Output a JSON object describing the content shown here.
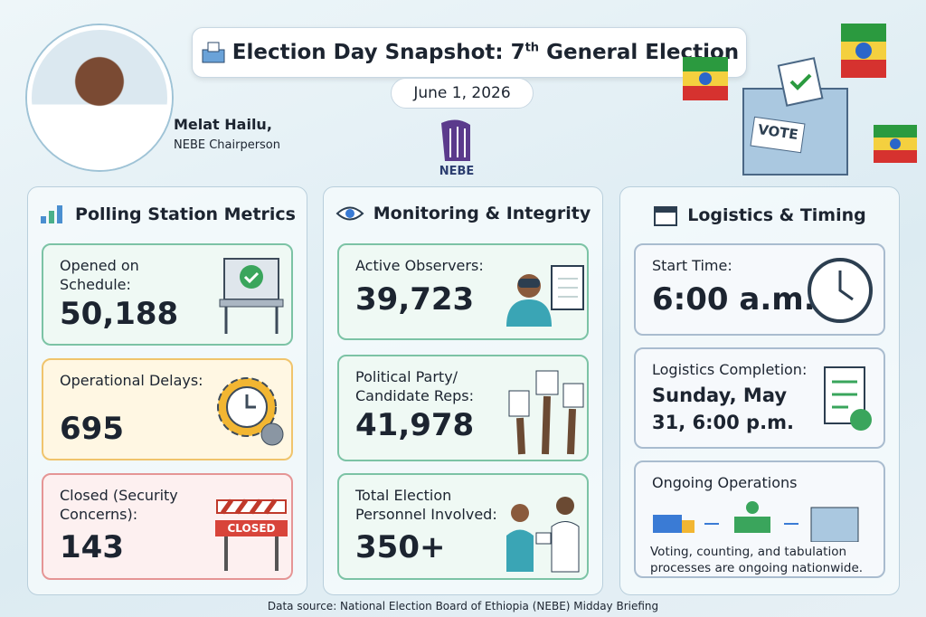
{
  "header": {
    "title": [
      "Election Day Snapshot: 7",
      "th",
      "General Election"
    ],
    "date": "June 1, 2026",
    "logo": "NEBE"
  },
  "person": {
    "name": "Melat Hailu,",
    "role": "NEBE Chairperson"
  },
  "vote_box": "VOTE",
  "panels": [
    {
      "title": "Polling Station Metrics",
      "cards": [
        {
          "label": "Opened on Schedule:",
          "value": "50,188"
        },
        {
          "label": "Operational Delays:",
          "value": "695"
        },
        {
          "label": "Closed (Security Concerns):",
          "value": "143",
          "sign": "CLOSED"
        }
      ]
    },
    {
      "title": "Monitoring & Integrity",
      "cards": [
        {
          "label": "Active Observers:",
          "value": "39,723"
        },
        {
          "label": "Political Party/ Candidate Reps:",
          "value": "41,978"
        },
        {
          "label": "Total Election Personnel Involved:",
          "value": "350+"
        }
      ]
    },
    {
      "title": "Logistics & Timing",
      "cards": [
        {
          "label": "Start Time:",
          "value": "6:00 a.m."
        },
        {
          "label": "Logistics Completion:",
          "value": "Sunday, May 31, 6:00 p.m."
        },
        {
          "label": "Ongoing Operations",
          "value": "Voting, counting, and tabulation processes are ongoing nationwide."
        }
      ]
    }
  ],
  "footer": "Data source: National Election Board of Ethiopia (NEBE) Midday Briefing"
}
